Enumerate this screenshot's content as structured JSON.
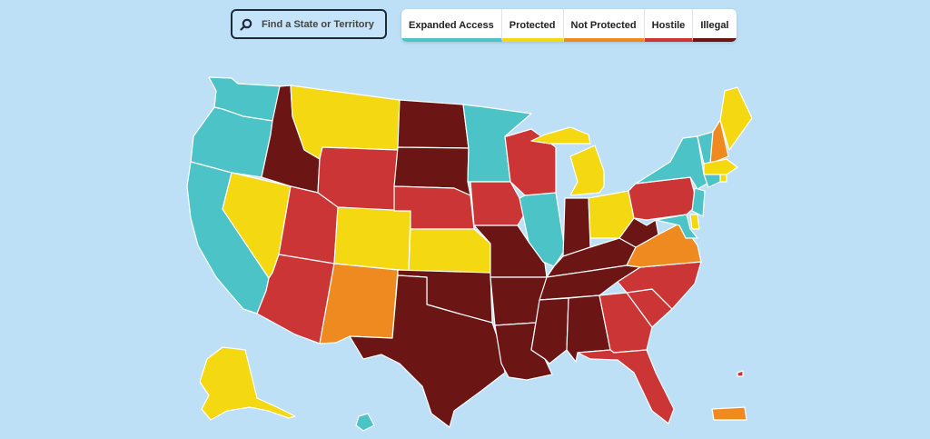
{
  "search": {
    "placeholder": "Find a State or Territory"
  },
  "legend": [
    {
      "key": "expanded",
      "label": "Expanded Access",
      "color": "#4cc3c7"
    },
    {
      "key": "protected",
      "label": "Protected",
      "color": "#f3d812"
    },
    {
      "key": "notprotected",
      "label": "Not Protected",
      "color": "#ee8a1f"
    },
    {
      "key": "hostile",
      "label": "Hostile",
      "color": "#cb3535"
    },
    {
      "key": "illegal",
      "label": "Illegal",
      "color": "#6b1515"
    }
  ],
  "map": {
    "states": [
      {
        "id": "WA",
        "status": "expanded"
      },
      {
        "id": "OR",
        "status": "expanded"
      },
      {
        "id": "CA",
        "status": "expanded"
      },
      {
        "id": "NV",
        "status": "protected"
      },
      {
        "id": "ID",
        "status": "illegal"
      },
      {
        "id": "MT",
        "status": "protected"
      },
      {
        "id": "WY",
        "status": "hostile"
      },
      {
        "id": "UT",
        "status": "hostile"
      },
      {
        "id": "AZ",
        "status": "hostile"
      },
      {
        "id": "CO",
        "status": "protected"
      },
      {
        "id": "NM",
        "status": "notprotected"
      },
      {
        "id": "ND",
        "status": "illegal"
      },
      {
        "id": "SD",
        "status": "illegal"
      },
      {
        "id": "NE",
        "status": "hostile"
      },
      {
        "id": "KS",
        "status": "protected"
      },
      {
        "id": "OK",
        "status": "illegal"
      },
      {
        "id": "TX",
        "status": "illegal"
      },
      {
        "id": "MN",
        "status": "expanded"
      },
      {
        "id": "IA",
        "status": "hostile"
      },
      {
        "id": "MO",
        "status": "illegal"
      },
      {
        "id": "AR",
        "status": "illegal"
      },
      {
        "id": "LA",
        "status": "illegal"
      },
      {
        "id": "WI",
        "status": "hostile"
      },
      {
        "id": "IL",
        "status": "expanded"
      },
      {
        "id": "MI",
        "status": "protected"
      },
      {
        "id": "IN",
        "status": "illegal"
      },
      {
        "id": "OH",
        "status": "protected"
      },
      {
        "id": "KY",
        "status": "illegal"
      },
      {
        "id": "TN",
        "status": "illegal"
      },
      {
        "id": "MS",
        "status": "illegal"
      },
      {
        "id": "AL",
        "status": "illegal"
      },
      {
        "id": "GA",
        "status": "hostile"
      },
      {
        "id": "FL",
        "status": "hostile"
      },
      {
        "id": "SC",
        "status": "hostile"
      },
      {
        "id": "NC",
        "status": "hostile"
      },
      {
        "id": "VA",
        "status": "notprotected"
      },
      {
        "id": "WV",
        "status": "illegal"
      },
      {
        "id": "PA",
        "status": "hostile"
      },
      {
        "id": "NY",
        "status": "expanded"
      },
      {
        "id": "VT",
        "status": "expanded"
      },
      {
        "id": "NH",
        "status": "notprotected"
      },
      {
        "id": "ME",
        "status": "protected"
      },
      {
        "id": "MA",
        "status": "protected"
      },
      {
        "id": "RI",
        "status": "protected"
      },
      {
        "id": "CT",
        "status": "expanded"
      },
      {
        "id": "NJ",
        "status": "expanded"
      },
      {
        "id": "DE",
        "status": "protected"
      },
      {
        "id": "MD",
        "status": "expanded"
      },
      {
        "id": "AK",
        "status": "protected"
      },
      {
        "id": "HI",
        "status": "expanded"
      },
      {
        "id": "PR",
        "status": "notprotected"
      },
      {
        "id": "VI",
        "status": "hostile"
      }
    ]
  }
}
